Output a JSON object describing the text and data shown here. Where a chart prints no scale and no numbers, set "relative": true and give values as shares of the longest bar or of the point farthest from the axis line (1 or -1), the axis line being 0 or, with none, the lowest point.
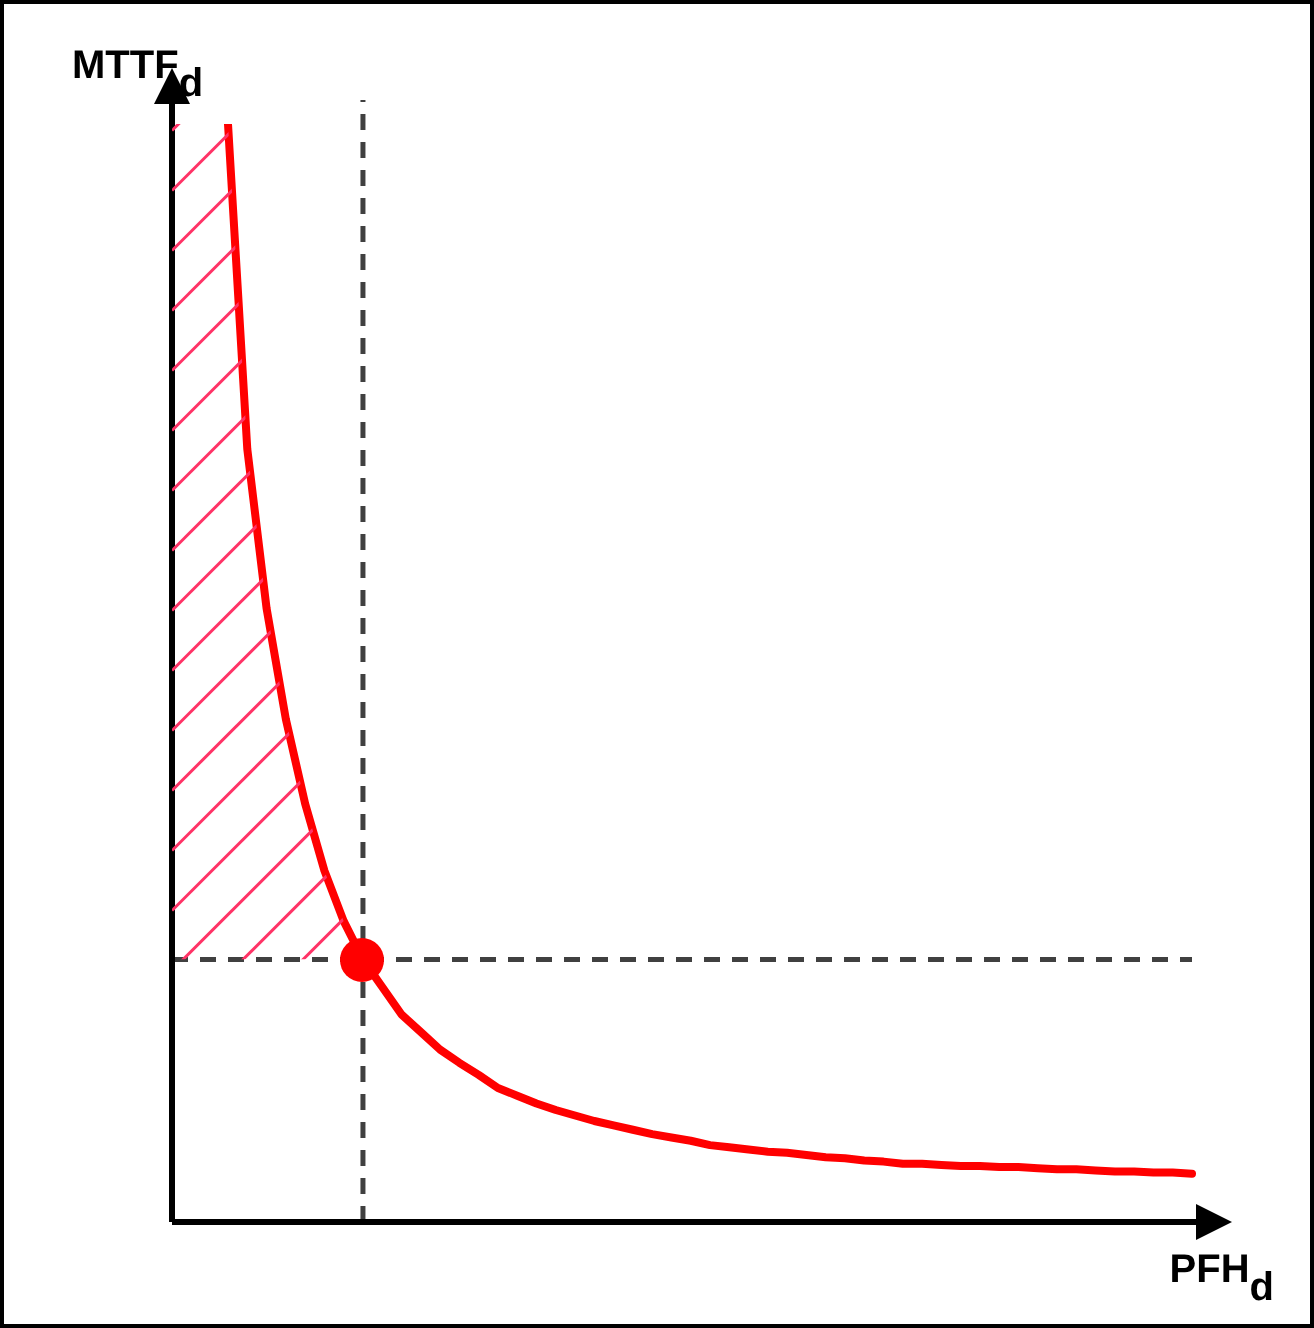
{
  "chart_data": {
    "type": "line",
    "relative": true,
    "xlabel": "PFH$_{d}$",
    "ylabel": "MTTF$_{d}$",
    "categories": [
      null,
      null,
      null,
      null,
      null,
      null,
      null,
      null,
      null,
      null,
      null,
      null,
      null,
      null,
      null,
      null,
      null,
      null,
      null,
      null,
      null,
      null,
      null,
      null,
      null,
      null,
      null,
      null,
      null,
      null,
      null,
      null,
      null,
      null,
      null,
      null,
      null,
      null,
      null,
      null,
      null,
      null,
      null,
      null,
      null,
      null,
      null,
      null,
      null,
      null,
      null
    ],
    "series": [
      {
        "color": "#ff0000",
        "values": [
          1.0,
          0.704,
          0.559,
          0.458,
          0.381,
          0.32,
          0.274,
          0.239,
          0.214,
          0.189,
          0.173,
          0.157,
          0.145,
          0.134,
          0.122,
          0.115,
          0.108,
          0.102,
          0.097,
          0.092,
          0.088,
          0.084,
          0.08,
          0.077,
          0.074,
          0.07,
          0.068,
          0.066,
          0.064,
          0.063,
          0.061,
          0.059,
          0.058,
          0.056,
          0.055,
          0.053,
          0.053,
          0.052,
          0.051,
          0.051,
          0.05,
          0.05,
          0.049,
          0.048,
          0.048,
          0.047,
          0.046,
          0.046,
          0.045,
          0.045,
          0.044
        ]
      }
    ],
    "ref_lines": [
      {
        "axis": "y",
        "value": 0.239,
        "color": "#404040",
        "line_style": "dashed"
      }
    ]
  }
}
